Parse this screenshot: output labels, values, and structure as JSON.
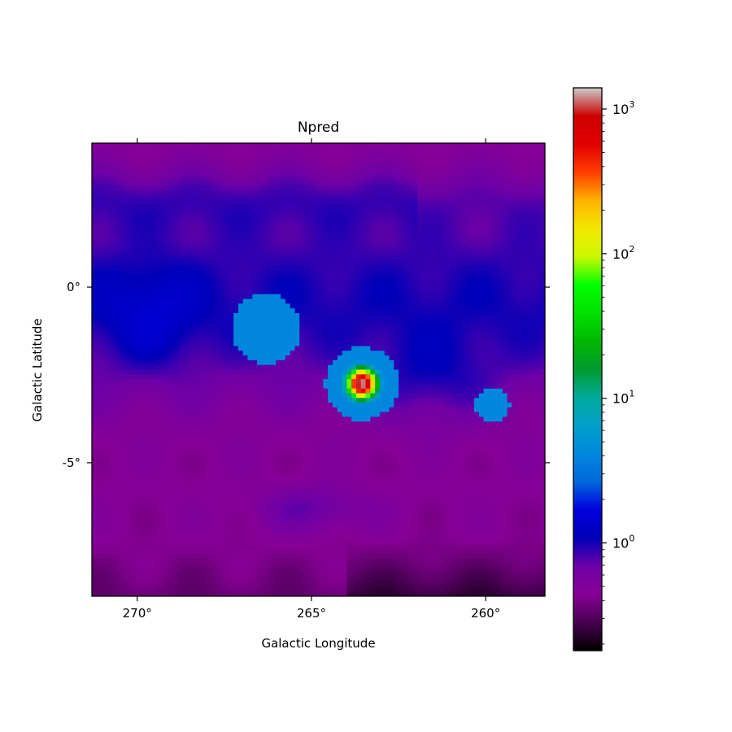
{
  "chart_data": {
    "type": "heatmap",
    "title": "Npred",
    "xlabel": "Galactic Longitude",
    "ylabel": "Galactic Latitude",
    "xlim": [
      271.3,
      258.3
    ],
    "ylim": [
      -8.8,
      4.1
    ],
    "x_ticks": [
      {
        "value": 270,
        "label": "270°"
      },
      {
        "value": 265,
        "label": "265°"
      },
      {
        "value": 260,
        "label": "260°"
      }
    ],
    "y_ticks": [
      {
        "value": 0,
        "label": "0°"
      },
      {
        "value": -5,
        "label": "-5°"
      }
    ],
    "colorbar": {
      "scale": "log",
      "colormap": "nipy_spectral",
      "range": [
        0.18,
        1400
      ],
      "ticks": [
        {
          "value": 1,
          "base": "10",
          "exp": "0"
        },
        {
          "value": 10,
          "base": "10",
          "exp": "1"
        },
        {
          "value": 100,
          "base": "10",
          "exp": "2"
        },
        {
          "value": 1000,
          "base": "10",
          "exp": "3"
        }
      ]
    },
    "sources": [
      {
        "lon": 266.3,
        "lat": -1.2,
        "radius_deg": 1.0,
        "peak": 5
      },
      {
        "lon": 263.55,
        "lat": -2.75,
        "radius_deg": 1.05,
        "peak": 1300
      },
      {
        "lon": 259.8,
        "lat": -3.35,
        "radius_deg": 0.5,
        "peak": 7
      }
    ]
  }
}
